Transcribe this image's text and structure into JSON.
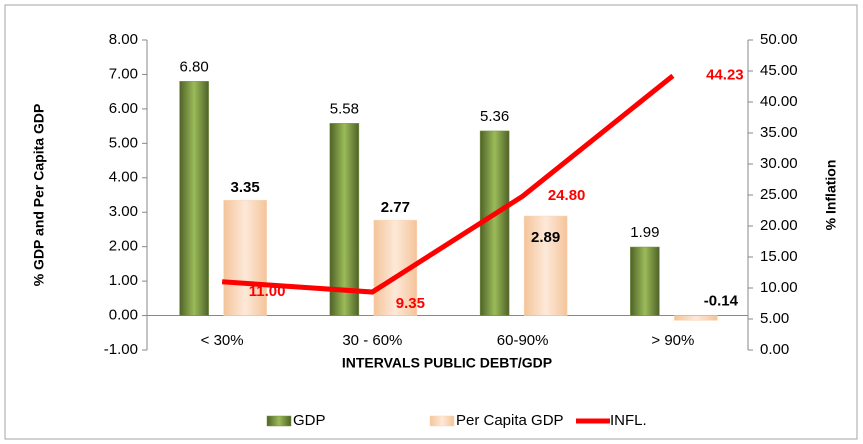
{
  "chart_data": {
    "type": "bar_line",
    "x_label": "INTERVALS PUBLIC DEBT/GDP",
    "y_label": "% GDP and Per Capita GDP",
    "y2_label": "% Inflation",
    "categories": [
      "< 30%",
      "30 - 60%",
      "60-90%",
      "> 90%"
    ],
    "series": [
      {
        "name": "GDP",
        "color": "#77933c",
        "kind": "bar",
        "values": [
          6.8,
          5.58,
          5.36,
          1.99
        ],
        "value_labels": [
          "6.80",
          "5.58",
          "5.36",
          "1.99"
        ]
      },
      {
        "name": "Per Capita GDP",
        "color": "#fcd5b5",
        "kind": "bar",
        "values": [
          3.35,
          2.77,
          2.89,
          -0.14
        ],
        "value_labels": [
          "3.35",
          "2.77",
          "2.89",
          "-0.14"
        ]
      },
      {
        "name": "INFL.",
        "color": "#ff0000",
        "kind": "line",
        "axis": "y2",
        "values": [
          11.0,
          9.35,
          24.8,
          44.23
        ],
        "value_labels": [
          "11.00",
          "9.35",
          "24.80",
          "44.23"
        ]
      }
    ],
    "ylim": [
      -1,
      8
    ],
    "yticks": [
      {
        "value": -1,
        "label": "-1.00"
      },
      {
        "value": 0,
        "label": "0.00"
      },
      {
        "value": 1,
        "label": "1.00"
      },
      {
        "value": 2,
        "label": "2.00"
      },
      {
        "value": 3,
        "label": "3.00"
      },
      {
        "value": 4,
        "label": "4.00"
      },
      {
        "value": 5,
        "label": "5.00"
      },
      {
        "value": 6,
        "label": "6.00"
      },
      {
        "value": 7,
        "label": "7.00"
      },
      {
        "value": 8,
        "label": "8.00"
      }
    ],
    "y2lim": [
      0,
      50
    ],
    "y2ticks": [
      {
        "value": 0,
        "label": "0.00"
      },
      {
        "value": 5,
        "label": "5.00"
      },
      {
        "value": 10,
        "label": "10.00"
      },
      {
        "value": 15,
        "label": "15.00"
      },
      {
        "value": 20,
        "label": "20.00"
      },
      {
        "value": 25,
        "label": "25.00"
      },
      {
        "value": 30,
        "label": "30.00"
      },
      {
        "value": 35,
        "label": "35.00"
      },
      {
        "value": 40,
        "label": "40.00"
      },
      {
        "value": 45,
        "label": "45.00"
      },
      {
        "value": 50,
        "label": "50.00"
      }
    ],
    "legend": "bottom"
  }
}
